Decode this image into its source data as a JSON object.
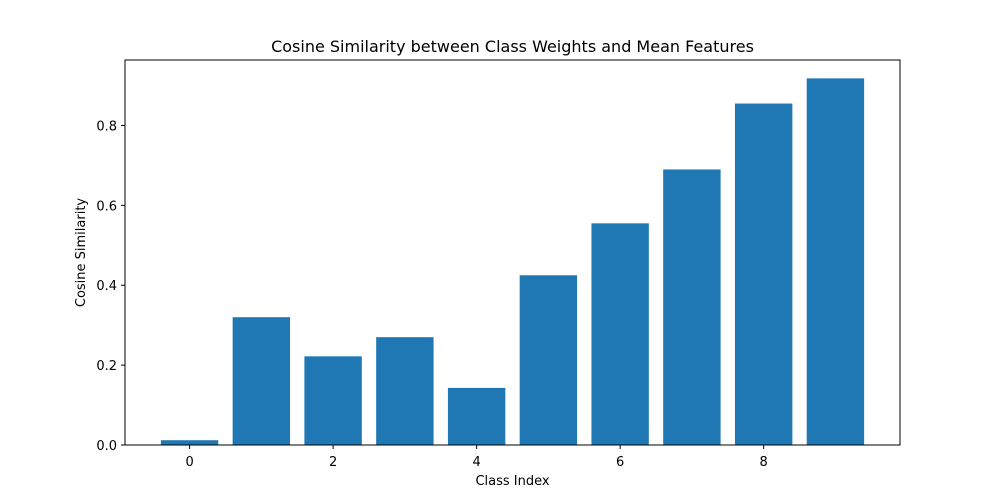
{
  "chart_data": {
    "type": "bar",
    "title": "Cosine Similarity between Class Weights and Mean Features",
    "xlabel": "Class Index",
    "ylabel": "Cosine Similarity",
    "categories": [
      0,
      1,
      2,
      3,
      4,
      5,
      6,
      7,
      8,
      9
    ],
    "values": [
      0.012,
      0.32,
      0.222,
      0.27,
      0.143,
      0.425,
      0.555,
      0.69,
      0.855,
      0.918
    ],
    "xlim": [
      -0.9,
      9.9
    ],
    "ylim": [
      0,
      0.964
    ],
    "xticks": [
      0,
      2,
      4,
      6,
      8
    ],
    "xtick_labels": [
      "0",
      "2",
      "4",
      "6",
      "8"
    ],
    "yticks": [
      0.0,
      0.2,
      0.4,
      0.6,
      0.8
    ],
    "ytick_labels": [
      "0.0",
      "0.2",
      "0.4",
      "0.6",
      "0.8"
    ],
    "bar_color": "#1f77b4",
    "grid": false,
    "legend": "none"
  }
}
